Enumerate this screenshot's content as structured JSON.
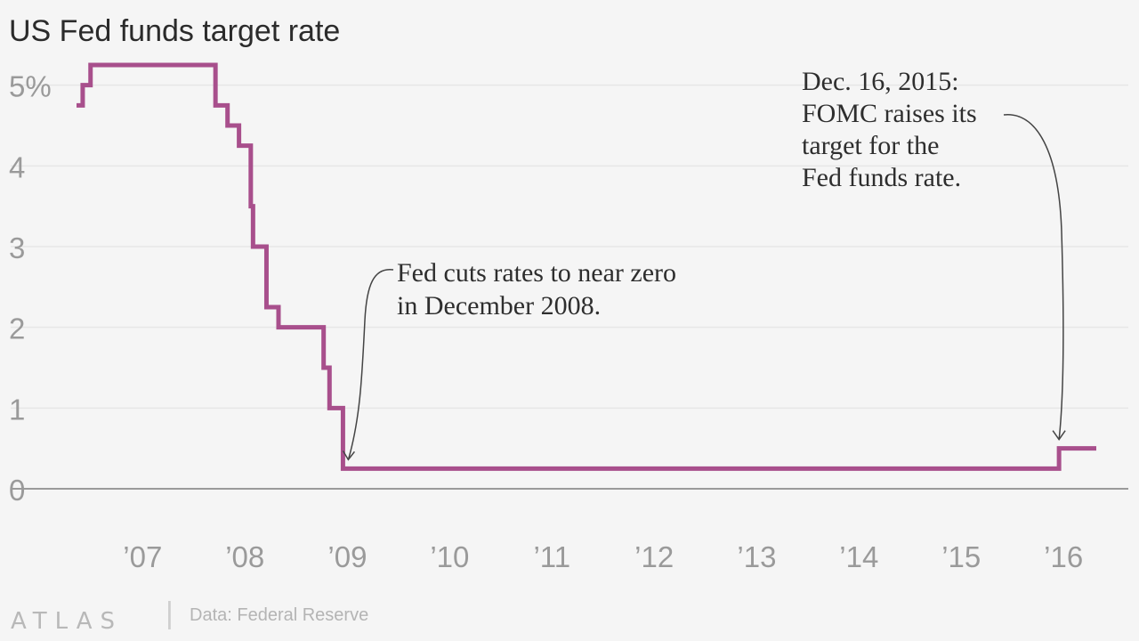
{
  "chart_data": {
    "type": "line",
    "step": true,
    "title": "US Fed funds target rate",
    "y_unit_suffix": "%",
    "ylim": [
      0,
      5.25
    ],
    "y_ticks": [
      {
        "value": 0,
        "label": "0"
      },
      {
        "value": 1,
        "label": "1"
      },
      {
        "value": 2,
        "label": "2"
      },
      {
        "value": 3,
        "label": "3"
      },
      {
        "value": 4,
        "label": "4"
      },
      {
        "value": 5,
        "label": "5%"
      }
    ],
    "xlim": [
      "2006-05-10",
      "2016-04-27"
    ],
    "x_ticks": [
      {
        "value": "2007-01-01",
        "label": "’07"
      },
      {
        "value": "2008-01-01",
        "label": "’08"
      },
      {
        "value": "2009-01-01",
        "label": "’09"
      },
      {
        "value": "2010-01-01",
        "label": "’10"
      },
      {
        "value": "2011-01-01",
        "label": "’11"
      },
      {
        "value": "2012-01-01",
        "label": "’12"
      },
      {
        "value": "2013-01-01",
        "label": "’13"
      },
      {
        "value": "2014-01-01",
        "label": "’14"
      },
      {
        "value": "2015-01-01",
        "label": "’15"
      },
      {
        "value": "2016-01-01",
        "label": "’16"
      }
    ],
    "grid": true,
    "color": "#a84f8c",
    "series": [
      {
        "points": [
          {
            "x": "2006-05-10",
            "y": 4.75
          },
          {
            "x": "2006-06-01",
            "y": 5.0
          },
          {
            "x": "2006-06-29",
            "y": 5.25
          },
          {
            "x": "2007-09-18",
            "y": 4.75
          },
          {
            "x": "2007-10-31",
            "y": 4.5
          },
          {
            "x": "2007-12-11",
            "y": 4.25
          },
          {
            "x": "2008-01-22",
            "y": 3.5
          },
          {
            "x": "2008-01-30",
            "y": 3.0
          },
          {
            "x": "2008-03-18",
            "y": 2.25
          },
          {
            "x": "2008-04-30",
            "y": 2.0
          },
          {
            "x": "2008-10-08",
            "y": 1.5
          },
          {
            "x": "2008-10-29",
            "y": 1.0
          },
          {
            "x": "2008-12-16",
            "y": 0.25
          },
          {
            "x": "2015-12-16",
            "y": 0.5
          },
          {
            "x": "2016-04-27",
            "y": 0.5
          }
        ]
      }
    ],
    "annotations": [
      {
        "lines": [
          "Fed cuts rates to near zero",
          "in December 2008."
        ],
        "points_to": {
          "x": "2008-12-16",
          "y": 0.25
        }
      },
      {
        "lines": [
          "Dec. 16, 2015:",
          "FOMC raises its",
          "target for the",
          "Fed funds rate."
        ],
        "points_to": {
          "x": "2015-12-16",
          "y": 0.5
        }
      }
    ]
  },
  "footer": {
    "brand": "ATLAS",
    "separator": "|",
    "source": "Data: Federal Reserve"
  },
  "colors": {
    "background": "#f5f5f5",
    "series": "#a84f8c",
    "grid": "#e6e6e6",
    "axis_text": "#9a9a9a"
  }
}
